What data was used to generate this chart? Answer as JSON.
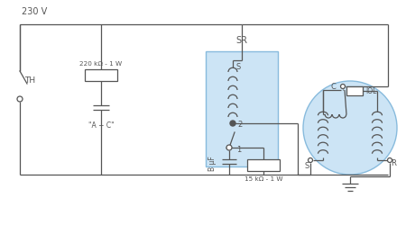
{
  "bg_color": "#ffffff",
  "line_color": "#555555",
  "sr_box_color": "#cce4f5",
  "sr_box_edge": "#88bbdd",
  "motor_circle_color": "#cce4f5",
  "motor_circle_edge": "#88bbdd",
  "labels": {
    "voltage": "230 V",
    "th": "TH",
    "resistor1": "220 kΩ - 1 W",
    "cap_label": "\"A + C\"",
    "sr": "SR",
    "s_top": "S",
    "num2": "2",
    "num1": "1",
    "cap_b": "B μF",
    "resistor2": "15 kΩ - 1 W",
    "motor_c": "C",
    "motor_iol": "IOL",
    "motor_s": "S",
    "motor_r": "R"
  }
}
